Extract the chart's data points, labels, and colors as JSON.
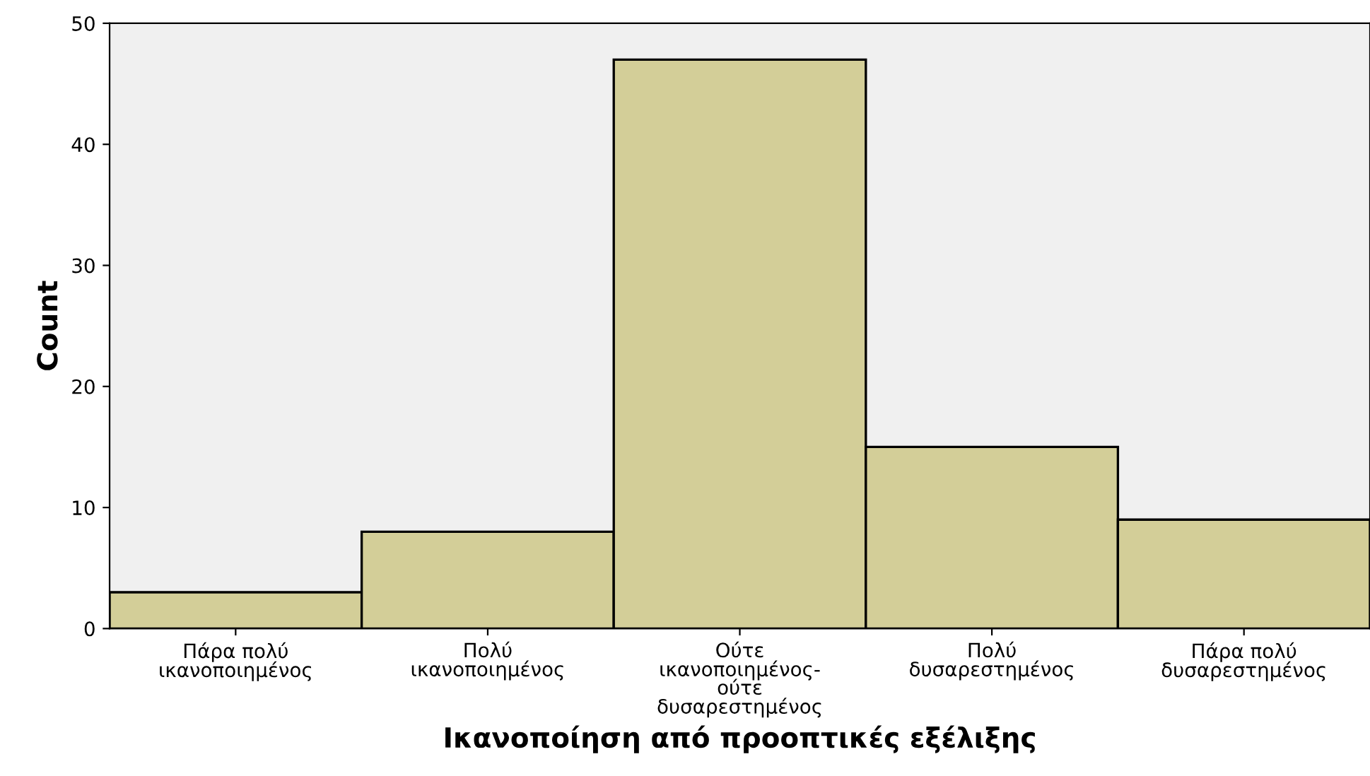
{
  "chart_data": {
    "type": "bar",
    "xlabel": "Ικανοποίηση από προοπτικές εξέλιξης",
    "ylabel": "Count",
    "categories": [
      "Πάρα πολύ\nικανοποιημένος",
      "Πολύ\nικανοποιημένος",
      "Ούτε\nικανοποιημένος-\nούτε\nδυσαρεστημένος",
      "Πολύ\nδυσαρεστημένος",
      "Πάρα πολύ\nδυσαρεστημένος"
    ],
    "values": [
      3,
      8,
      47,
      15,
      9
    ],
    "color": "#d3ce98",
    "ylim": [
      0,
      50
    ],
    "yticks": [
      0,
      10,
      20,
      30,
      40,
      50
    ],
    "grid": false,
    "legend": false
  }
}
